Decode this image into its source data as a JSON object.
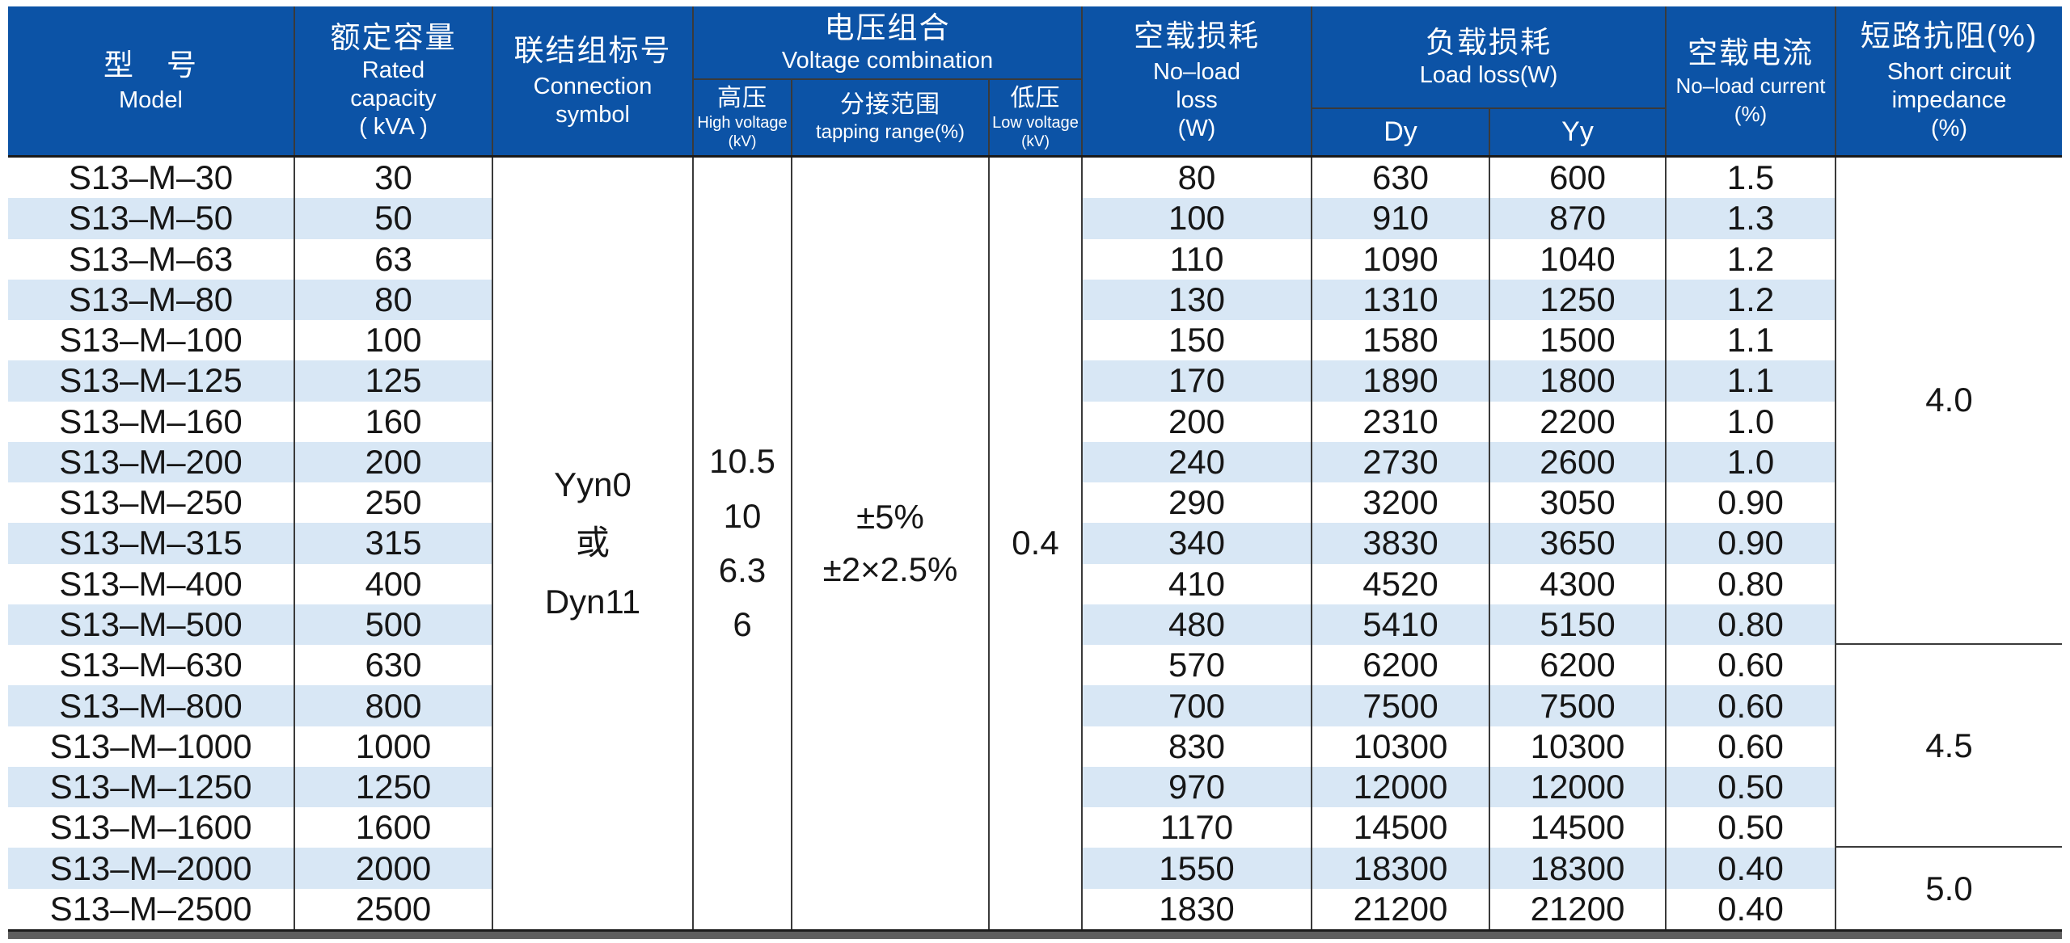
{
  "table": {
    "header": {
      "model": {
        "zh": "型　号",
        "en": "Model"
      },
      "rated": {
        "zh": "额定容量",
        "en_lines": [
          "Rated",
          "capacity",
          "( kVA )"
        ]
      },
      "connection": {
        "zh": "联结组标号",
        "en_lines": [
          "Connection",
          "symbol"
        ]
      },
      "voltage_combination": {
        "zh": "电压组合",
        "en": "Voltage combination"
      },
      "high_voltage": {
        "zh": "高压",
        "en": "High voltage",
        "unit": "(kV)"
      },
      "tapping_range": {
        "zh": "分接范围",
        "en": "tapping range(%)"
      },
      "low_voltage": {
        "zh": "低压",
        "en": "Low voltage",
        "unit": "(kV)"
      },
      "no_load_loss": {
        "zh": "空载损耗",
        "en_lines": [
          "No–load",
          "loss",
          "(W)"
        ]
      },
      "load_loss": {
        "zh": "负载损耗",
        "en": "Load loss(W)",
        "sub": [
          "Dy",
          "Yy"
        ]
      },
      "no_load_current": {
        "zh": "空载电流",
        "en": "No–load current",
        "unit": "(%)"
      },
      "impedance": {
        "zh": "短路抗阻(%)",
        "en_lines": [
          "Short circuit",
          "impedance",
          "(%)"
        ]
      }
    },
    "spans": {
      "connection_symbol_lines": [
        "Yyn0",
        "或",
        "Dyn11"
      ],
      "high_voltage_lines": [
        "10.5",
        "10",
        "6.3",
        "6"
      ],
      "tapping_range_lines": [
        "±5%",
        "±2×2.5%"
      ],
      "low_voltage": "0.4",
      "impedance_groups": [
        {
          "value": "4.0",
          "row_span": 12
        },
        {
          "value": "4.5",
          "row_span": 5
        },
        {
          "value": "5.0",
          "row_span": 2
        }
      ]
    },
    "rows": [
      {
        "model": "S13–M–30",
        "capacity": "30",
        "no_load_loss": "80",
        "dy": "630",
        "yy": "600",
        "current": "1.5"
      },
      {
        "model": "S13–M–50",
        "capacity": "50",
        "no_load_loss": "100",
        "dy": "910",
        "yy": "870",
        "current": "1.3"
      },
      {
        "model": "S13–M–63",
        "capacity": "63",
        "no_load_loss": "110",
        "dy": "1090",
        "yy": "1040",
        "current": "1.2"
      },
      {
        "model": "S13–M–80",
        "capacity": "80",
        "no_load_loss": "130",
        "dy": "1310",
        "yy": "1250",
        "current": "1.2"
      },
      {
        "model": "S13–M–100",
        "capacity": "100",
        "no_load_loss": "150",
        "dy": "1580",
        "yy": "1500",
        "current": "1.1"
      },
      {
        "model": "S13–M–125",
        "capacity": "125",
        "no_load_loss": "170",
        "dy": "1890",
        "yy": "1800",
        "current": "1.1"
      },
      {
        "model": "S13–M–160",
        "capacity": "160",
        "no_load_loss": "200",
        "dy": "2310",
        "yy": "2200",
        "current": "1.0"
      },
      {
        "model": "S13–M–200",
        "capacity": "200",
        "no_load_loss": "240",
        "dy": "2730",
        "yy": "2600",
        "current": "1.0"
      },
      {
        "model": "S13–M–250",
        "capacity": "250",
        "no_load_loss": "290",
        "dy": "3200",
        "yy": "3050",
        "current": "0.90"
      },
      {
        "model": "S13–M–315",
        "capacity": "315",
        "no_load_loss": "340",
        "dy": "3830",
        "yy": "3650",
        "current": "0.90"
      },
      {
        "model": "S13–M–400",
        "capacity": "400",
        "no_load_loss": "410",
        "dy": "4520",
        "yy": "4300",
        "current": "0.80"
      },
      {
        "model": "S13–M–500",
        "capacity": "500",
        "no_load_loss": "480",
        "dy": "5410",
        "yy": "5150",
        "current": "0.80"
      },
      {
        "model": "S13–M–630",
        "capacity": "630",
        "no_load_loss": "570",
        "dy": "6200",
        "yy": "6200",
        "current": "0.60"
      },
      {
        "model": "S13–M–800",
        "capacity": "800",
        "no_load_loss": "700",
        "dy": "7500",
        "yy": "7500",
        "current": "0.60"
      },
      {
        "model": "S13–M–1000",
        "capacity": "1000",
        "no_load_loss": "830",
        "dy": "10300",
        "yy": "10300",
        "current": "0.60"
      },
      {
        "model": "S13–M–1250",
        "capacity": "1250",
        "no_load_loss": "970",
        "dy": "12000",
        "yy": "12000",
        "current": "0.50"
      },
      {
        "model": "S13–M–1600",
        "capacity": "1600",
        "no_load_loss": "1170",
        "dy": "14500",
        "yy": "14500",
        "current": "0.50"
      },
      {
        "model": "S13–M–2000",
        "capacity": "2000",
        "no_load_loss": "1550",
        "dy": "18300",
        "yy": "18300",
        "current": "0.40"
      },
      {
        "model": "S13–M–2500",
        "capacity": "2500",
        "no_load_loss": "1830",
        "dy": "21200",
        "yy": "21200",
        "current": "0.40"
      }
    ]
  },
  "colors": {
    "header_bg": "#0c53a6",
    "header_text": "#ffffff",
    "stripe": "#d8e7f5",
    "border": "#3a3a3a",
    "bottom_bar": "#5e5e5e",
    "body_text": "#161616"
  }
}
